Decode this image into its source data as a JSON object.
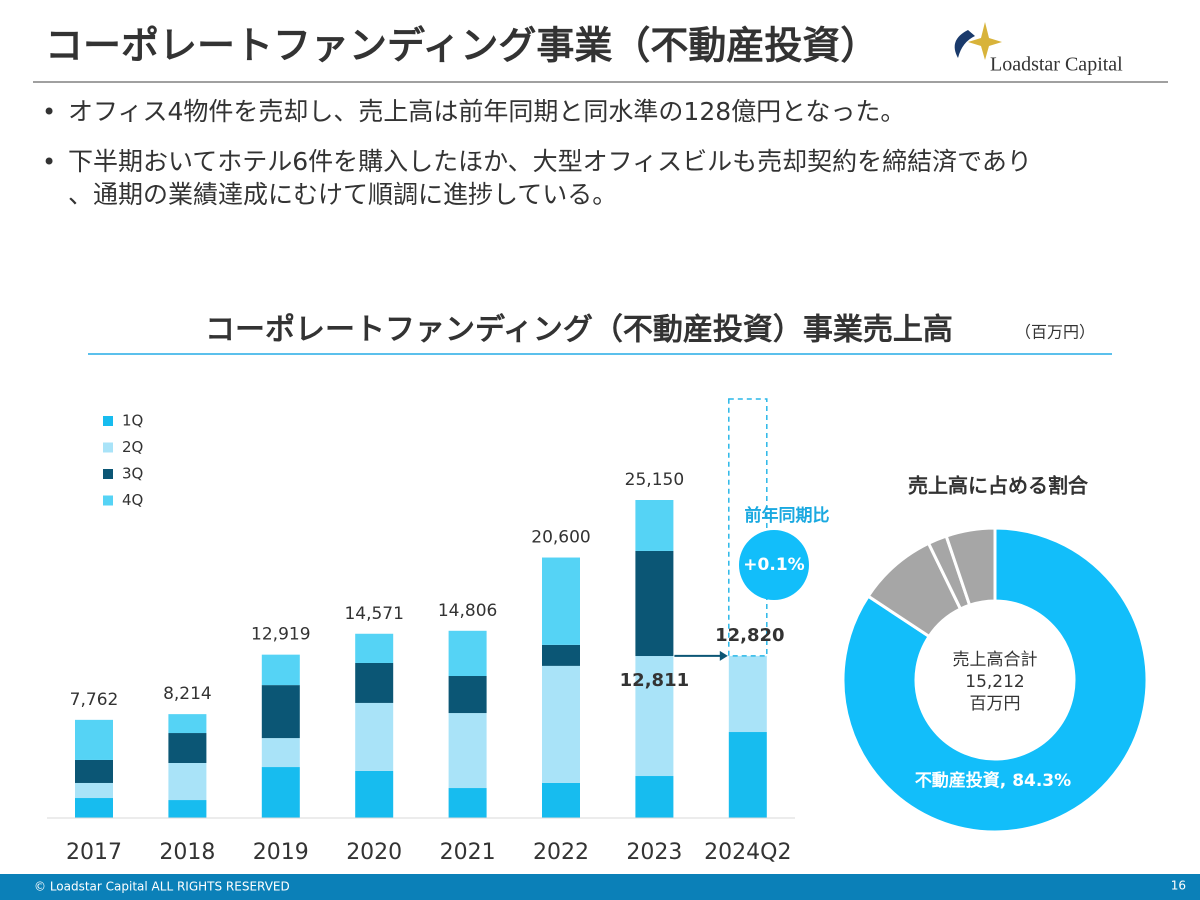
{
  "header": {
    "title": "コーポレートファンディング事業（不動産投資）",
    "logo": "Loadstar Capital"
  },
  "bullets": [
    "オフィス4物件を売却し、売上高は前年同期と同水準の128億円となった。",
    "下半期おいてホテル6件を購入したほか、大型オフィスビルも売却契約を締結済であり、通期の業績達成にむけて順調に進捗している。"
  ],
  "chart_data": [
    {
      "type": "stacked_bar",
      "title": "コーポレートファンディング（不動産投資）事業売上高",
      "unit": "（百万円）",
      "categories": [
        "2017",
        "2018",
        "2019",
        "2020",
        "2021",
        "2022",
        "2023",
        "2024Q2"
      ],
      "series": [
        {
          "name": "1Q",
          "color": "#17bcef",
          "values": [
            1580,
            1420,
            4030,
            3720,
            2370,
            2770,
            3320,
            6800
          ]
        },
        {
          "name": "2Q",
          "color": "#a9e3f8",
          "values": [
            1190,
            2930,
            2290,
            5380,
            5930,
            9260,
            9491,
            6020
          ]
        },
        {
          "name": "3Q",
          "color": "#0b5675",
          "values": [
            1820,
            2370,
            4190,
            3160,
            2930,
            1660,
            8310,
            null
          ]
        },
        {
          "name": "4Q",
          "color": "#55d3f5",
          "values": [
            3172,
            1494,
            2409,
            2311,
            3576,
            6910,
            4029,
            null
          ]
        }
      ],
      "total_labels": [
        "7,762",
        "8,214",
        "12,919",
        "14,571",
        "14,806",
        "20,600",
        "25,150",
        null
      ],
      "annotations": [
        "12,811",
        "12,820",
        "前年同期比",
        "+0.1%"
      ]
    },
    {
      "type": "donut",
      "title": "売上高に占める割合",
      "categories": [
        "不動産投資",
        null,
        null,
        null
      ],
      "values": [
        84.3,
        8.5,
        2.0,
        5.2
      ],
      "value_labels": [
        "不動産投資, 84.3%",
        null,
        null,
        null
      ],
      "colors": [
        "#12befa",
        "#a6a6a6",
        "#a6a6a6",
        "#a6a6a6"
      ],
      "center_label": [
        "売上高合計",
        "15,212",
        "百万円"
      ]
    }
  ],
  "footer": {
    "copyright": "© Loadstar Capital ALL RIGHTS RESERVED",
    "page": "16"
  }
}
